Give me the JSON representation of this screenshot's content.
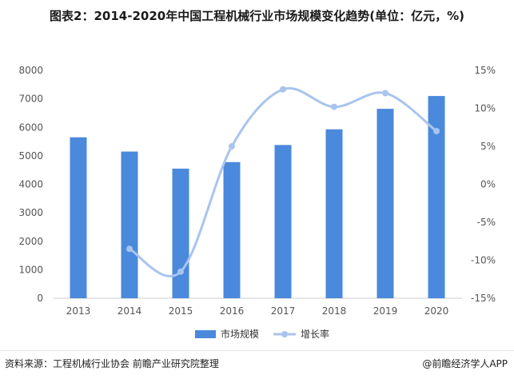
{
  "title": "图表2：2014-2020年中国工程机械行业市场规模变化趋势(单位：亿元，%)",
  "source": "资料来源：工程机械行业协会 前瞻产业研究院整理",
  "brand": "@前瞻经济学人APP",
  "chart_data": {
    "type": "bar",
    "categories": [
      "2013",
      "2014",
      "2015",
      "2016",
      "2017",
      "2018",
      "2019",
      "2020"
    ],
    "series": [
      {
        "name": "市场规模",
        "type": "bar",
        "axis": "left",
        "values": [
          5650,
          5150,
          4550,
          4780,
          5380,
          5930,
          6650,
          7100
        ]
      },
      {
        "name": "增长率",
        "type": "line",
        "axis": "right",
        "values": [
          null,
          -8.5,
          -11.5,
          5.0,
          12.5,
          10.2,
          12.0,
          7.0
        ]
      }
    ],
    "y_left": {
      "min": 0,
      "max": 8000,
      "ticks": [
        "0",
        "1000",
        "2000",
        "3000",
        "4000",
        "5000",
        "6000",
        "7000",
        "8000"
      ]
    },
    "y_right": {
      "min": -15,
      "max": 15,
      "ticks": [
        "-15%",
        "-10%",
        "-5%",
        "0%",
        "5%",
        "10%",
        "15%"
      ]
    },
    "legend_position": "bottom",
    "colors": {
      "bar": "#4a89dc",
      "line": "#a9c4ee"
    }
  }
}
